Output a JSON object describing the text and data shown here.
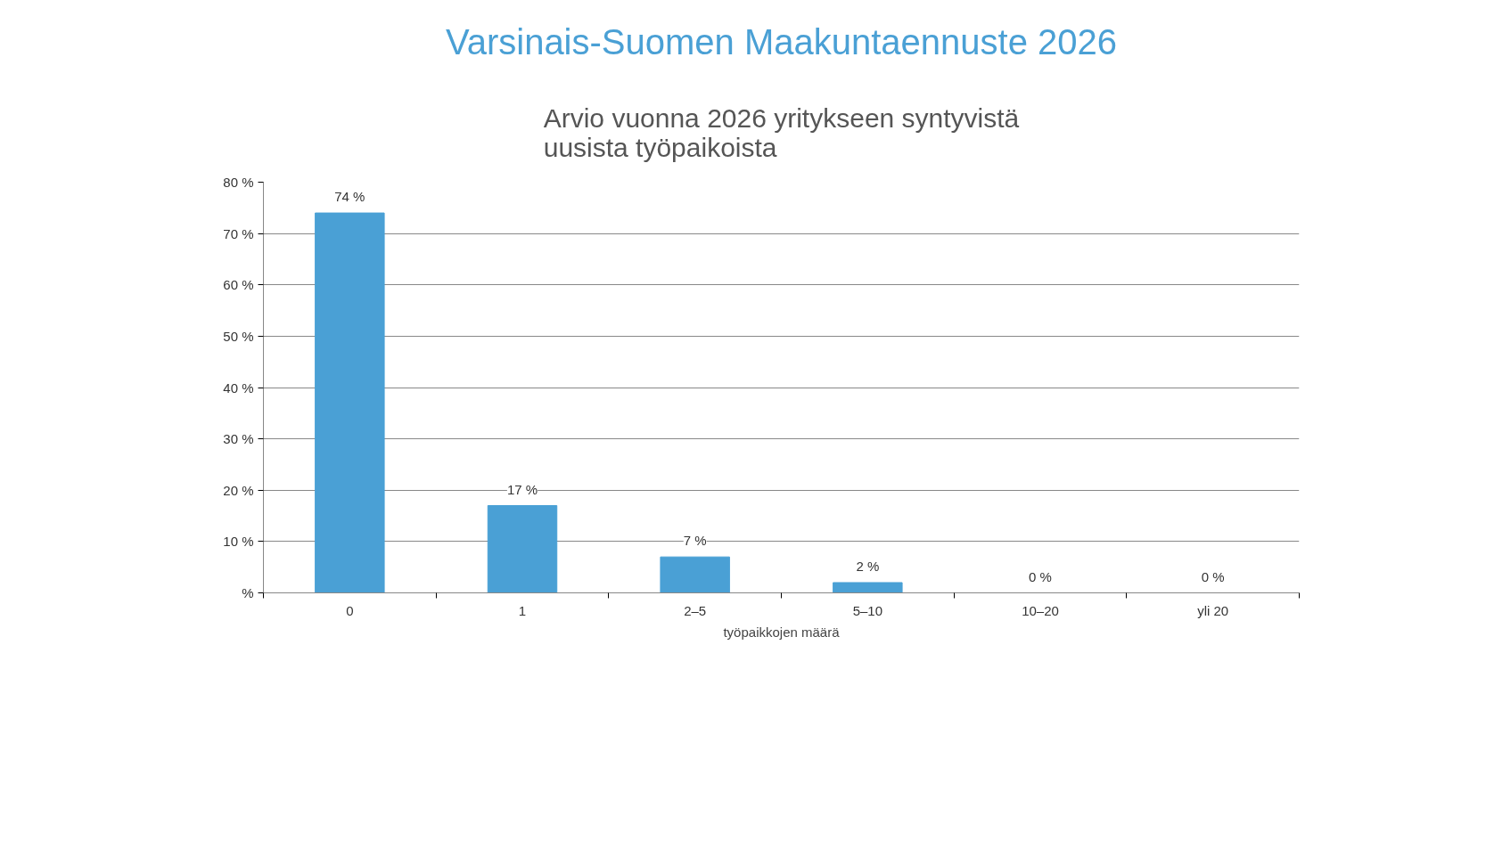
{
  "chart_data": {
    "type": "bar",
    "title": "Varsinais-Suomen Maakuntaennuste 2026",
    "subtitle": "Arvio vuonna 2026 yritykseen syntyvistä\nuusista työpaikoista",
    "xlabel": "työpaikkojen määrä",
    "categories": [
      "0",
      "1",
      "2–5",
      "5–10",
      "10–20",
      "yli 20"
    ],
    "values": [
      74,
      17,
      7,
      2,
      0,
      0
    ],
    "value_labels": [
      "74 %",
      "17 %",
      "7 %",
      "2 %",
      "0 %",
      "0 %"
    ],
    "color": "#4aa0d5",
    "ylim": [
      0,
      80
    ],
    "yticks": [
      {
        "value": 0,
        "label": "%"
      },
      {
        "value": 10,
        "label": "10 %"
      },
      {
        "value": 20,
        "label": "20 %"
      },
      {
        "value": 30,
        "label": "30 %"
      },
      {
        "value": 40,
        "label": "40 %"
      },
      {
        "value": 50,
        "label": "50 %"
      },
      {
        "value": 60,
        "label": "60 %"
      },
      {
        "value": 70,
        "label": "70 %"
      },
      {
        "value": 80,
        "label": "80 %"
      }
    ],
    "grid": "y"
  }
}
